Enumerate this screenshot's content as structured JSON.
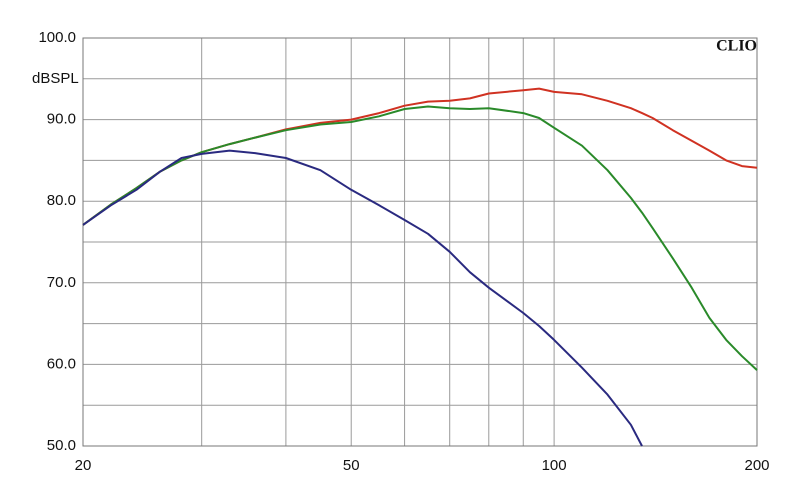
{
  "chart_data": {
    "type": "line",
    "brand": "CLIO",
    "y_label": "dBSPL",
    "x_scale": "log",
    "grid": true,
    "x": [
      20,
      22,
      24,
      26,
      28,
      30,
      33,
      36,
      40,
      45,
      50,
      55,
      60,
      65,
      70,
      75,
      80,
      90,
      95,
      100,
      110,
      120,
      130,
      135,
      140,
      150,
      160,
      170,
      180,
      190,
      200
    ],
    "series": [
      {
        "name": "red",
        "color": "#d03222",
        "values": [
          77.1,
          79.6,
          81.6,
          83.6,
          85.0,
          86.0,
          87.0,
          87.8,
          88.8,
          89.6,
          90.0,
          90.8,
          91.7,
          92.2,
          92.3,
          92.6,
          93.2,
          93.6,
          93.8,
          93.4,
          93.1,
          92.3,
          91.4,
          90.8,
          90.2,
          88.7,
          87.4,
          86.2,
          85.0,
          84.3,
          84.1
        ]
      },
      {
        "name": "green",
        "color": "#2a8a2a",
        "values": [
          77.1,
          79.6,
          81.6,
          83.6,
          85.0,
          86.0,
          87.0,
          87.8,
          88.7,
          89.4,
          89.7,
          90.4,
          91.3,
          91.6,
          91.4,
          91.3,
          91.4,
          90.8,
          90.2,
          89.0,
          86.8,
          83.8,
          80.4,
          78.6,
          76.7,
          73.0,
          69.4,
          65.7,
          63.0,
          61.0,
          59.3
        ]
      },
      {
        "name": "blue",
        "color": "#2a2a80",
        "values": [
          77.1,
          79.5,
          81.4,
          83.6,
          85.3,
          85.8,
          86.2,
          85.9,
          85.3,
          83.8,
          81.4,
          79.5,
          77.7,
          76.0,
          73.8,
          71.3,
          69.4,
          66.3,
          64.7,
          63.0,
          59.6,
          56.3,
          52.6,
          50.0,
          null,
          null,
          null,
          null,
          null,
          null,
          null
        ]
      }
    ],
    "xlim": [
      20,
      200
    ],
    "xticks": [
      20,
      50,
      100,
      200
    ],
    "x_minor_grid": [
      30,
      40,
      60,
      70,
      80,
      90
    ],
    "ylim": [
      50,
      100
    ],
    "yticks": [
      {
        "value": 50,
        "label": "50.0"
      },
      {
        "value": 60,
        "label": "60.0"
      },
      {
        "value": 70,
        "label": "70.0"
      },
      {
        "value": 80,
        "label": "80.0"
      },
      {
        "value": 90,
        "label": "90.0"
      },
      {
        "value": 100,
        "label": "100.0"
      }
    ],
    "y_minor_grid": [
      55,
      65,
      75,
      85,
      95
    ]
  }
}
